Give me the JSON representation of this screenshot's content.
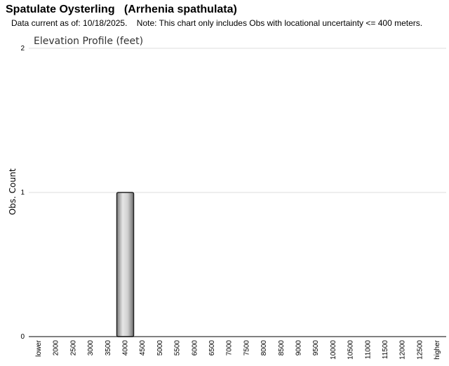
{
  "header": {
    "title": "Spatulate Oysterling   (Arrhenia spathulata)",
    "subtitle": "Data current as of: 10/18/2025.    Note: This chart only includes Obs with locational uncertainty <= 400 meters."
  },
  "chart_data": {
    "type": "bar",
    "title": "Elevation Profile (feet)",
    "xlabel": "",
    "ylabel": "Obs. Count",
    "ylim": [
      0,
      2
    ],
    "yticks": [
      "0",
      "1",
      "2"
    ],
    "grid": true,
    "categories": [
      "lower",
      "2000",
      "2500",
      "3000",
      "3500",
      "4000",
      "4500",
      "5000",
      "5500",
      "6000",
      "6500",
      "7000",
      "7500",
      "8000",
      "8500",
      "9000",
      "9500",
      "10000",
      "10500",
      "11000",
      "11500",
      "12000",
      "12500",
      "higher"
    ],
    "values": [
      0,
      0,
      0,
      0,
      0,
      1,
      0,
      0,
      0,
      0,
      0,
      0,
      0,
      0,
      0,
      0,
      0,
      0,
      0,
      0,
      0,
      0,
      0,
      0
    ],
    "bar_color": "#aaaaaa"
  }
}
